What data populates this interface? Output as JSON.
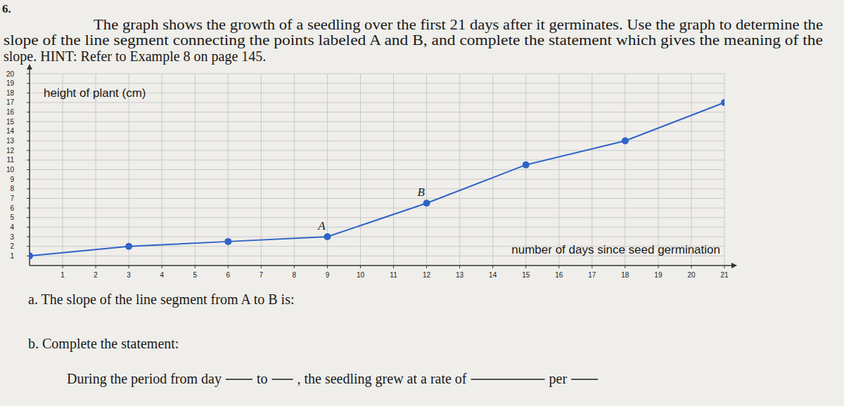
{
  "problem": {
    "number": "6.",
    "lines": [
      "The graph shows the growth of a seedling over the first 21 days after it germinates. Use the graph to determine the",
      "slope of the line segment connecting the points labeled A and B, and complete the statement which gives the meaning of the",
      "slope.  HINT: Refer to Example 8 on page 145."
    ]
  },
  "chart_data": {
    "type": "line",
    "x_label": "number of days since seed germination",
    "y_label": "height of plant (cm)",
    "x": [
      0,
      3,
      6,
      9,
      12,
      15,
      18,
      21
    ],
    "values": [
      1,
      2,
      2.5,
      3,
      6.5,
      10.5,
      13,
      17
    ],
    "color": "#2f63c8",
    "marker": "circle",
    "xlim": [
      0,
      21
    ],
    "xticks": [
      1,
      2,
      3,
      4,
      5,
      6,
      7,
      8,
      9,
      10,
      11,
      12,
      13,
      14,
      15,
      16,
      17,
      18,
      19,
      20,
      21
    ],
    "ylim": [
      0,
      20
    ],
    "yticks": [
      1,
      2,
      3,
      4,
      5,
      6,
      7,
      8,
      9,
      10,
      11,
      12,
      13,
      14,
      15,
      16,
      17,
      18,
      19,
      20
    ],
    "grid": true,
    "annotations": [
      {
        "text": "A",
        "point": 3
      },
      {
        "text": "B",
        "point": 4
      }
    ]
  },
  "questions": {
    "a": "a. The slope of the line segment from A to B is:",
    "b": "b. Complete the statement:",
    "statement": [
      "During the period from day",
      "to",
      ", the seedling grew at a rate of",
      "per"
    ]
  }
}
